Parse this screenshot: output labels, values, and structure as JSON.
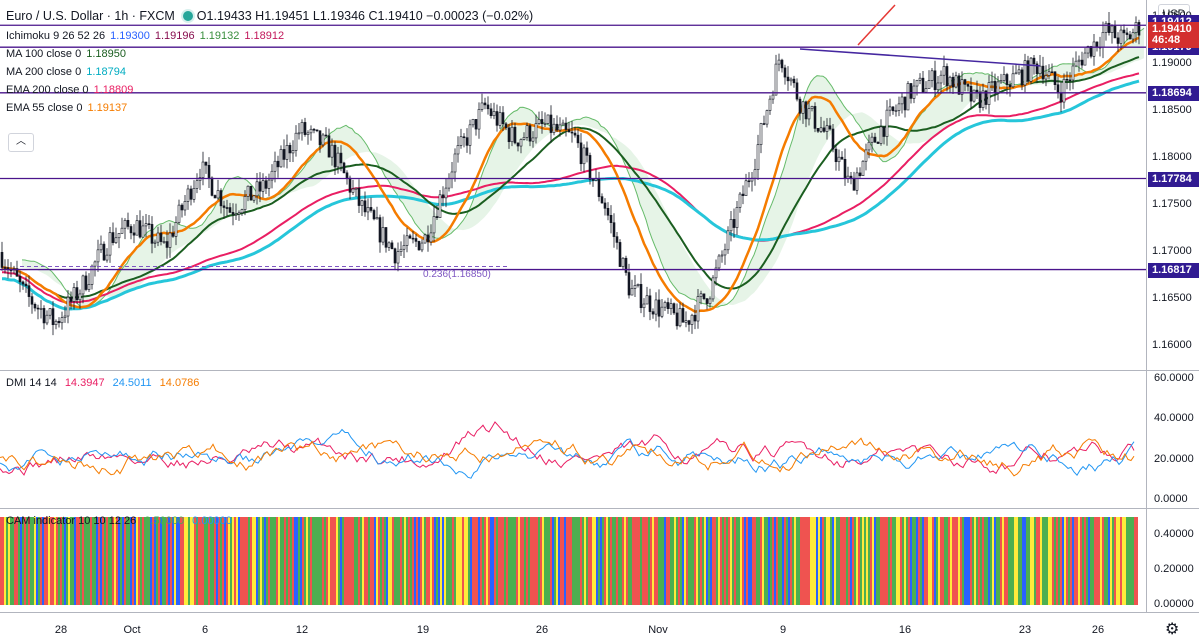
{
  "header": {
    "symbol": "Euro / U.S. Dollar · 1h · FXCM",
    "ohlc": "O1.19433 H1.19451 L1.19346 C1.19410 −0.00023 (−0.02%)"
  },
  "indicators": [
    {
      "name": "Ichimoku 9 26 52 26",
      "values": [
        "1.19300",
        "1.19196",
        "1.19132",
        "1.18912"
      ],
      "colors": [
        "#2962ff",
        "#880e4f",
        "#388e3c",
        "#c2185b"
      ]
    },
    {
      "name": "MA 100 close 0",
      "values": [
        "1.18950"
      ],
      "colors": [
        "#1b5e20"
      ]
    },
    {
      "name": "MA 200 close 0",
      "values": [
        "1.18794"
      ],
      "colors": [
        "#00acc1"
      ]
    },
    {
      "name": "EMA 200 close 0",
      "values": [
        "1.18809"
      ],
      "colors": [
        "#e91e63"
      ]
    },
    {
      "name": "EMA 55 close 0",
      "values": [
        "1.19137"
      ],
      "colors": [
        "#f57c00"
      ]
    }
  ],
  "currency_button": "USD",
  "price_axis": [
    "1.19500",
    "1.19000",
    "1.18500",
    "1.18000",
    "1.17500",
    "1.17000",
    "1.16500",
    "1.16000"
  ],
  "price_axis_values": [
    1.195,
    1.19,
    1.185,
    1.18,
    1.175,
    1.17,
    1.165,
    1.16
  ],
  "horizontal_levels": [
    {
      "label": "1.19412",
      "value": 1.19412
    },
    {
      "label": "1.19410",
      "value": 1.1941
    },
    {
      "label": "1.19179",
      "value": 1.19179
    },
    {
      "label": "1.18694",
      "value": 1.18694
    },
    {
      "label": "1.17784",
      "value": 1.17784
    },
    {
      "label": "1.16817",
      "value": 1.16817
    }
  ],
  "countdown": "46:48",
  "fib_label": "0.236(1.16850)",
  "dmi": {
    "title": "DMI 14 14",
    "values": [
      {
        "v": "14.3947",
        "color": "#e91e63"
      },
      {
        "v": "24.5011",
        "color": "#2196f3"
      },
      {
        "v": "14.0786",
        "color": "#f57c00"
      }
    ],
    "axis": [
      "60.0000",
      "40.0000",
      "20.0000",
      "0.0000"
    ]
  },
  "cam": {
    "title": "CAM indicator 10 10 12 26",
    "values": [
      {
        "v": "0.50000",
        "color": "#4caf50"
      },
      {
        "v": "0.00000",
        "color": "#2196f3"
      }
    ],
    "axis": [
      "0.40000",
      "0.20000",
      "0.00000"
    ],
    "colors": [
      "#ef5350",
      "#4caf50",
      "#ffeb3b",
      "#2962ff"
    ]
  },
  "time_axis": [
    "28",
    "Oct",
    "6",
    "12",
    "19",
    "26",
    "Nov",
    "9",
    "16",
    "23",
    "26"
  ]
}
